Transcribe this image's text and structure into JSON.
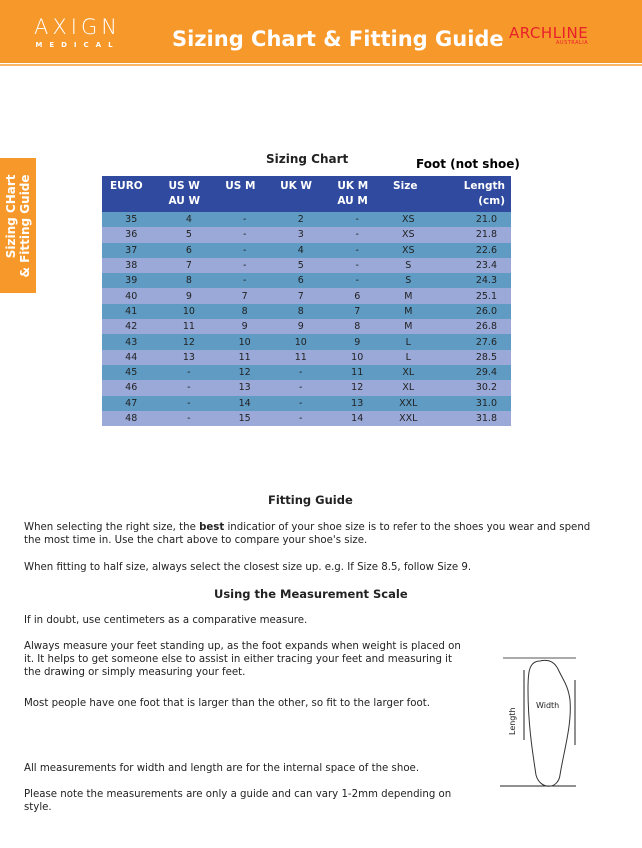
{
  "header": {
    "logo_main": "AXIGN",
    "logo_sub": "MEDICAL",
    "title": "Sizing Chart & Fitting Guide",
    "brand": "ARCHLINE",
    "brand_sub": "AUSTRALIA"
  },
  "side_tab": {
    "line1": "Sizing CHart",
    "line2": "& Fitting Guide"
  },
  "chart": {
    "title": "Sizing Chart",
    "note": "Foot (not shoe)",
    "columns": [
      "EURO",
      "US W\nAU W",
      "US M",
      "UK W",
      "UK M\nAU M",
      "Size",
      "Length\n(cm)"
    ],
    "rows": [
      [
        "35",
        "4",
        "-",
        "2",
        "-",
        "XS",
        "21.0"
      ],
      [
        "36",
        "5",
        "-",
        "3",
        "-",
        "XS",
        "21.8"
      ],
      [
        "37",
        "6",
        "-",
        "4",
        "-",
        "XS",
        "22.6"
      ],
      [
        "38",
        "7",
        "-",
        "5",
        "-",
        "S",
        "23.4"
      ],
      [
        "39",
        "8",
        "-",
        "6",
        "-",
        "S",
        "24.3"
      ],
      [
        "40",
        "9",
        "7",
        "7",
        "6",
        "M",
        "25.1"
      ],
      [
        "41",
        "10",
        "8",
        "8",
        "7",
        "M",
        "26.0"
      ],
      [
        "42",
        "11",
        "9",
        "9",
        "8",
        "M",
        "26.8"
      ],
      [
        "43",
        "12",
        "10",
        "10",
        "9",
        "L",
        "27.6"
      ],
      [
        "44",
        "13",
        "11",
        "11",
        "10",
        "L",
        "28.5"
      ],
      [
        "45",
        "-",
        "12",
        "-",
        "11",
        "XL",
        "29.4"
      ],
      [
        "46",
        "-",
        "13",
        "-",
        "12",
        "XL",
        "30.2"
      ],
      [
        "47",
        "-",
        "14",
        "-",
        "13",
        "XXL",
        "31.0"
      ],
      [
        "48",
        "-",
        "15",
        "-",
        "14",
        "XXL",
        "31.8"
      ]
    ]
  },
  "fitting": {
    "title": "Fitting Guide",
    "p1_pre": "When selecting the right size, the ",
    "p1_bold": "best",
    "p1_post": " indicatior of your shoe size is to refer to the shoes you wear and spend the most time in. Use the chart above to compare your shoe's size.",
    "p2": "When fitting to half size, always select the closest size up. e.g. If Size 8.5, follow Size 9."
  },
  "measure": {
    "title": "Using the Measurement Scale",
    "p1": "If in doubt, use centimeters as a comparative measure.",
    "p2": "Always measure your feet standing up, as the foot expands when weight is placed on it. It helps to get someone else to assist in either tracing your feet and measuring it the drawing or simply measuring your feet.",
    "p3": "Most people have one foot that is larger than the other, so fit to the larger foot.",
    "p4": "All measurements for width and length are for the internal space of the shoe.",
    "p5": "Please note the measurements are only a guide and can vary 1-2mm depending on style.",
    "fig_width": "Width",
    "fig_length": "Length"
  }
}
